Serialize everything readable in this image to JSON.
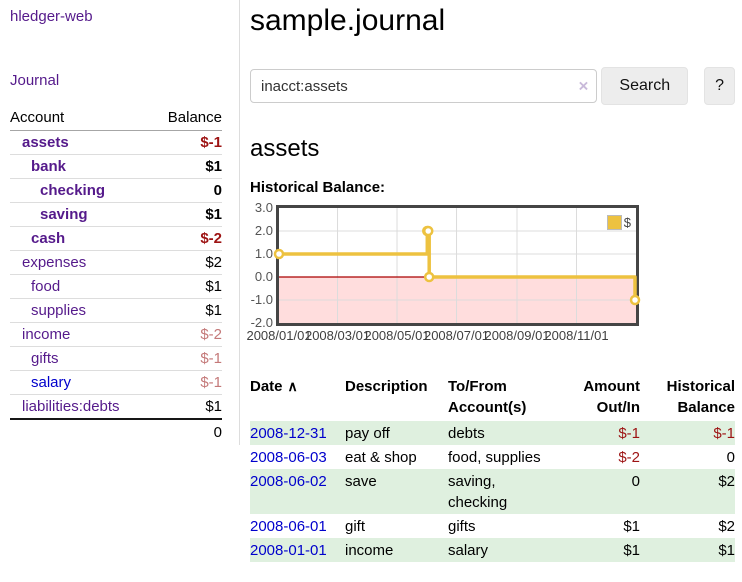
{
  "app": {
    "brand": "hledger-web",
    "nav_journal": "Journal"
  },
  "palette": {
    "link_purple": "#551a8b",
    "link_blue": "#0000cc",
    "negative_red": "#9d1313",
    "negative_muted_rose": "#c47979",
    "row_stripe_green": "#dff0df",
    "chart_gold": "#edc240",
    "chart_negative_region": "#ffdddd",
    "chart_zero_line": "#aa0000"
  },
  "icons": {
    "clear": "×",
    "sort_asc": "∧"
  },
  "sidebar": {
    "columns": {
      "account": "Account",
      "balance": "Balance"
    },
    "accounts": [
      {
        "name": "assets",
        "indent": 1,
        "bold": true,
        "blue": false,
        "balance": "$-1"
      },
      {
        "name": "bank",
        "indent": 2,
        "bold": true,
        "blue": false,
        "balance": "$1"
      },
      {
        "name": "checking",
        "indent": 3,
        "bold": true,
        "blue": false,
        "balance": "0"
      },
      {
        "name": "saving",
        "indent": 3,
        "bold": true,
        "blue": false,
        "balance": "$1"
      },
      {
        "name": "cash",
        "indent": 2,
        "bold": true,
        "blue": false,
        "balance": "$-2"
      },
      {
        "name": "expenses",
        "indent": 1,
        "bold": false,
        "blue": false,
        "balance": "$2"
      },
      {
        "name": "food",
        "indent": 2,
        "bold": false,
        "blue": false,
        "balance": "$1"
      },
      {
        "name": "supplies",
        "indent": 2,
        "bold": false,
        "blue": false,
        "balance": "$1"
      },
      {
        "name": "income",
        "indent": 1,
        "bold": false,
        "blue": false,
        "balance": "$-2"
      },
      {
        "name": "gifts",
        "indent": 2,
        "bold": false,
        "blue": false,
        "balance": "$-1"
      },
      {
        "name": "salary",
        "indent": 2,
        "bold": false,
        "blue": true,
        "balance": "$-1"
      },
      {
        "name": "liabilities:debts",
        "indent": 1,
        "bold": false,
        "blue": false,
        "balance": "$1"
      }
    ],
    "total": "0"
  },
  "header": {
    "title": "sample.journal"
  },
  "search": {
    "value": "inacct:assets",
    "button": "Search",
    "help_button": "?"
  },
  "account_page": {
    "heading": "assets",
    "chart_label": "Historical Balance:"
  },
  "chart_data": {
    "type": "line",
    "title": "Historical Balance",
    "step": true,
    "series": [
      {
        "name": "$",
        "color": "#edc240",
        "points": [
          {
            "x": "2008/01/01",
            "y": 1
          },
          {
            "x": "2008/06/01",
            "y": 2
          },
          {
            "x": "2008/06/02",
            "y": 2
          },
          {
            "x": "2008/06/03",
            "y": 0
          },
          {
            "x": "2008/12/31",
            "y": -1
          }
        ]
      }
    ],
    "xrange": [
      "2008/01/01",
      "2009/01/01"
    ],
    "ylim": [
      -2.0,
      3.0
    ],
    "yticks": [
      "3.0",
      "2.0",
      "1.0",
      "0.0",
      "-1.0",
      "-2.0"
    ],
    "xticks": [
      "2008/01/01",
      "2008/03/01",
      "2008/05/01",
      "2008/07/01",
      "2008/09/01",
      "2008/11/01"
    ],
    "legend_position": "top-right",
    "grid": true,
    "negative_region_color": "#ffdddd",
    "zero_line_color": "#aa0000",
    "grid_color": "#dcdcdc"
  },
  "register": {
    "columns": [
      "Date",
      "Description",
      "To/From Account(s)",
      "Amount Out/In",
      "Historical Balance"
    ],
    "rows": [
      {
        "date": "2008-12-31",
        "description": "pay off",
        "accounts": "debts",
        "amount": "$-1",
        "balance": "$-1"
      },
      {
        "date": "2008-06-03",
        "description": "eat & shop",
        "accounts": "food, supplies",
        "amount": "$-2",
        "balance": "0"
      },
      {
        "date": "2008-06-02",
        "description": "save",
        "accounts": "saving, checking",
        "amount": "0",
        "balance": "$2"
      },
      {
        "date": "2008-06-01",
        "description": "gift",
        "accounts": "gifts",
        "amount": "$1",
        "balance": "$2"
      },
      {
        "date": "2008-01-01",
        "description": "income",
        "accounts": "salary",
        "amount": "$1",
        "balance": "$1"
      }
    ]
  }
}
